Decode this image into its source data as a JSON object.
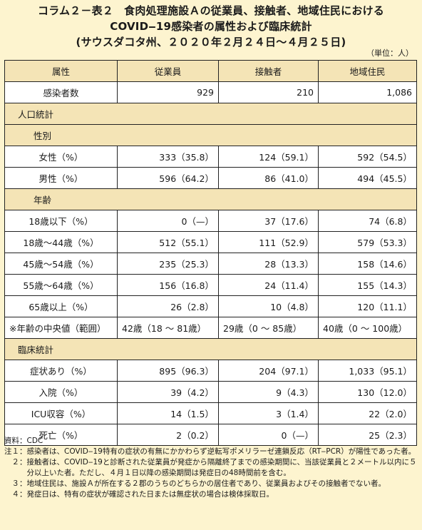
{
  "title": {
    "line1": "コラム２－表２　食肉処理施設Ａの従業員、接触者、地域住民における",
    "line2": "COVID‒19感染者の属性および臨床統計",
    "line3": "(サウスダコタ州、２０２０年２月２４日～４月２５日)"
  },
  "unit": "（単位：人）",
  "table": {
    "headers": [
      "属性",
      "従業員",
      "接触者",
      "地域住民"
    ],
    "infected": {
      "label": "感染者数",
      "values": [
        "929",
        "210",
        "1,086"
      ]
    },
    "sections": {
      "population": "人口統計",
      "sex": "性別",
      "age": "年齢",
      "clinical": "臨床統計"
    },
    "rows": {
      "female": {
        "label": "女性（%）",
        "values": [
          "333（35.8）",
          "124（59.1）",
          "592（54.5）"
        ]
      },
      "male": {
        "label": "男性（%）",
        "values": [
          "596（64.2）",
          "86（41.0）",
          "494（45.5）"
        ]
      },
      "age_u18": {
        "label": "18歳以下（%）",
        "values": [
          "0（—）",
          "37（17.6）",
          "74（6.8）"
        ]
      },
      "age_18_44": {
        "label": "18歳～44歳（%）",
        "values": [
          "512（55.1）",
          "111（52.9）",
          "579（53.3）"
        ]
      },
      "age_45_54": {
        "label": "45歳～54歳（%）",
        "values": [
          "235（25.3）",
          "28（13.3）",
          "158（14.6）"
        ]
      },
      "age_55_64": {
        "label": "55歳～64歳（%）",
        "values": [
          "156（16.8）",
          "24（11.4）",
          "155（14.3）"
        ]
      },
      "age_65": {
        "label": "65歳以上（%）",
        "values": [
          "26（2.8）",
          "10（4.8）",
          "120（11.1）"
        ]
      },
      "median": {
        "label": "※年齢の中央値（範囲）",
        "values": [
          "42歳（18 ～ 81歳）",
          "29歳（0 ～ 85歳）",
          "40歳（0 ～ 100歳）"
        ]
      },
      "symptoms": {
        "label": "症状あり（%）",
        "values": [
          "895（96.3）",
          "204（97.1）",
          "1,033（95.1）"
        ]
      },
      "hospital": {
        "label": "入院（%）",
        "values": [
          "39（4.2）",
          "9（4.3）",
          "130（12.0）"
        ]
      },
      "icu": {
        "label": "ICU収容（%）",
        "values": [
          "14（1.5）",
          "3（1.4）",
          "22（2.0）"
        ]
      },
      "death": {
        "label": "死亡（%）",
        "values": [
          "2（0.2）",
          "0（—）",
          "25（2.3）"
        ]
      }
    }
  },
  "notes": {
    "source": {
      "tag": "資料：",
      "text": "CDC"
    },
    "n1": {
      "tag": "注１：",
      "text": "感染者は、COVID‒19特有の症状の有無にかかわらず逆転写ポメリラーゼ連鎖反応（RT‒PCR）が陽性であった者。"
    },
    "n2": {
      "tag": "　２：",
      "text": "接触者は、COVID‒19と診断された従業員が発症から隔離終了までの感染期間に、当該従業員と２メートル以内に５分以上いた者。ただし、４月１日以降の感染期間は発症日の48時間前を含む。"
    },
    "n3": {
      "tag": "　３：",
      "text": "地域住民は、施設Ａが所在する２郡のうちのどちらかの居住者であり、従業員およびその接触者でない者。"
    },
    "n4": {
      "tag": "　４：",
      "text": "発症日は、特有の症状が確認された日または無症状の場合は検体採取日。"
    }
  }
}
